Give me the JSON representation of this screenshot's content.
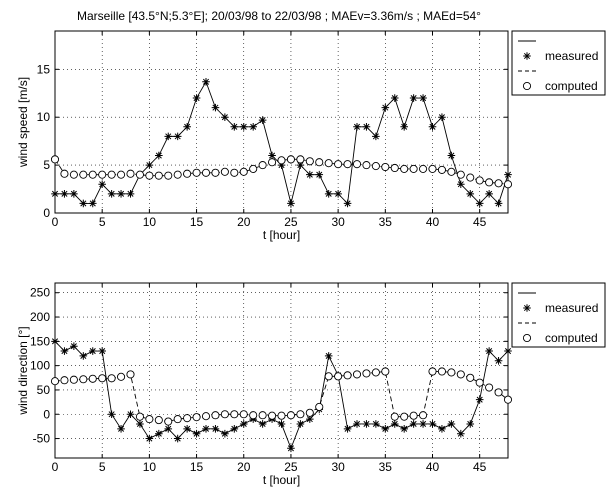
{
  "title": "Marseille [43.5°N;5.3°E]; 20/03/98 to 22/03/98 ; MAEv=3.36m/s ; MAEd=54°",
  "chart_data": [
    {
      "type": "line",
      "xlabel": "t [hour]",
      "ylabel": "wind speed [m/s]",
      "xlim": [
        0,
        48
      ],
      "ylim": [
        0,
        19
      ],
      "xticks": [
        0,
        5,
        10,
        15,
        20,
        25,
        30,
        35,
        40,
        45
      ],
      "yticks": [
        0,
        5,
        10,
        15
      ],
      "grid": true,
      "legend_position": "outside-right",
      "legend_entries": [
        "",
        "measured",
        "",
        "computed"
      ],
      "series": [
        {
          "name": "measured",
          "marker": "star",
          "line": "solid",
          "x": [
            0,
            1,
            2,
            3,
            4,
            5,
            6,
            7,
            8,
            9,
            10,
            11,
            12,
            13,
            14,
            15,
            16,
            17,
            18,
            19,
            20,
            21,
            22,
            23,
            24,
            25,
            26,
            27,
            28,
            29,
            30,
            31,
            32,
            33,
            34,
            35,
            36,
            37,
            38,
            39,
            40,
            41,
            42,
            43,
            44,
            45,
            46,
            47,
            48
          ],
          "values": [
            2,
            2,
            2,
            1,
            1,
            3,
            2,
            2,
            2,
            4,
            5,
            6,
            8,
            8,
            9,
            12,
            13.7,
            11,
            10,
            9,
            9,
            9,
            9.7,
            6,
            5,
            1,
            5,
            4,
            4,
            2,
            2,
            1,
            9,
            9,
            8,
            11,
            12,
            9,
            12,
            12,
            9,
            10,
            6,
            3,
            2,
            1,
            2,
            1,
            4
          ]
        },
        {
          "name": "computed",
          "marker": "circle",
          "line": "dashed",
          "x": [
            0,
            1,
            2,
            3,
            4,
            5,
            6,
            7,
            8,
            9,
            10,
            11,
            12,
            13,
            14,
            15,
            16,
            17,
            18,
            19,
            20,
            21,
            22,
            23,
            24,
            25,
            26,
            27,
            28,
            29,
            30,
            31,
            32,
            33,
            34,
            35,
            36,
            37,
            38,
            39,
            40,
            41,
            42,
            43,
            44,
            45,
            46,
            47,
            48
          ],
          "values": [
            5.6,
            4.1,
            4.0,
            4.0,
            4.0,
            4.0,
            4.0,
            4.0,
            4.1,
            4.0,
            3.9,
            3.9,
            3.9,
            4.0,
            4.1,
            4.2,
            4.2,
            4.2,
            4.3,
            4.2,
            4.3,
            4.6,
            5.0,
            5.3,
            5.5,
            5.6,
            5.6,
            5.4,
            5.3,
            5.2,
            5.1,
            5.1,
            5.1,
            5.0,
            4.9,
            4.8,
            4.7,
            4.6,
            4.6,
            4.6,
            4.6,
            4.5,
            4.3,
            4.0,
            3.7,
            3.4,
            3.2,
            3.1,
            3.0
          ]
        }
      ]
    },
    {
      "type": "line",
      "xlabel": "t [hour]",
      "ylabel": "wind direction [°]",
      "xlim": [
        0,
        48
      ],
      "ylim": [
        -90,
        270
      ],
      "xticks": [
        0,
        5,
        10,
        15,
        20,
        25,
        30,
        35,
        40,
        45
      ],
      "yticks": [
        -50,
        0,
        50,
        100,
        150,
        200,
        250
      ],
      "grid": true,
      "legend_position": "outside-right",
      "legend_entries": [
        "",
        "measured",
        "",
        "computed"
      ],
      "series": [
        {
          "name": "measured",
          "marker": "star",
          "line": "solid",
          "x": [
            0,
            1,
            2,
            3,
            4,
            5,
            6,
            7,
            8,
            9,
            10,
            11,
            12,
            13,
            14,
            15,
            16,
            17,
            18,
            19,
            20,
            21,
            22,
            23,
            24,
            25,
            26,
            27,
            28,
            29,
            30,
            31,
            32,
            33,
            34,
            35,
            36,
            37,
            38,
            39,
            40,
            41,
            42,
            43,
            44,
            45,
            46,
            47,
            48
          ],
          "values": [
            150,
            130,
            140,
            120,
            130,
            130,
            0,
            -30,
            0,
            -20,
            -50,
            -40,
            -30,
            -50,
            -30,
            -40,
            -30,
            -30,
            -40,
            -30,
            -20,
            -10,
            -20,
            -10,
            -20,
            -70,
            -20,
            -10,
            10,
            120,
            80,
            -30,
            -20,
            -20,
            -20,
            -30,
            -20,
            -30,
            -20,
            -20,
            -20,
            -30,
            -20,
            -40,
            -20,
            30,
            130,
            110,
            130
          ]
        },
        {
          "name": "computed",
          "marker": "circle",
          "line": "dashed",
          "x": [
            0,
            1,
            2,
            3,
            4,
            5,
            6,
            7,
            8,
            9,
            10,
            11,
            12,
            13,
            14,
            15,
            16,
            17,
            18,
            19,
            20,
            21,
            22,
            23,
            24,
            25,
            26,
            27,
            28,
            29,
            30,
            31,
            32,
            33,
            34,
            35,
            36,
            37,
            38,
            39,
            40,
            41,
            42,
            43,
            44,
            45,
            46,
            47,
            48
          ],
          "values": [
            68,
            70,
            71,
            72,
            73,
            74,
            74,
            77,
            82,
            -5,
            -10,
            -12,
            -15,
            -10,
            -8,
            -6,
            -4,
            -2,
            0,
            0,
            0,
            -2,
            -2,
            -3,
            -3,
            -2,
            0,
            3,
            15,
            78,
            78,
            80,
            82,
            84,
            86,
            88,
            -5,
            -5,
            -3,
            -2,
            88,
            88,
            86,
            82,
            75,
            65,
            55,
            45,
            30
          ]
        }
      ]
    }
  ]
}
